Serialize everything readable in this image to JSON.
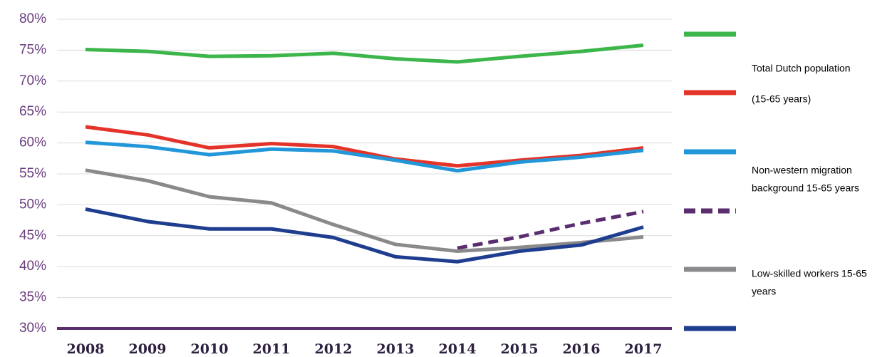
{
  "chart_data": {
    "type": "line",
    "categories": [
      "2008",
      "2009",
      "2010",
      "2011",
      "2012",
      "2013",
      "2014",
      "2015",
      "2016",
      "2017"
    ],
    "series": [
      {
        "color": "#3cb54a",
        "values": [
          75.1,
          74.8,
          74.0,
          74.1,
          74.5,
          73.6,
          73.1,
          74.0,
          74.8,
          75.8
        ]
      },
      {
        "color": "#e4342a",
        "values": [
          62.6,
          61.3,
          59.2,
          59.9,
          59.4,
          57.4,
          56.3,
          57.2,
          58.0,
          59.2
        ]
      },
      {
        "color": "#2196d8",
        "values": [
          60.1,
          59.4,
          58.1,
          59.0,
          58.7,
          57.2,
          55.5,
          56.9,
          57.7,
          58.8
        ]
      },
      {
        "color": "#5a2d6e",
        "dashed": true,
        "values": [
          null,
          null,
          null,
          null,
          null,
          null,
          43.0,
          44.8,
          47.0,
          48.9
        ]
      },
      {
        "color": "#8a8a8c",
        "values": [
          55.6,
          53.9,
          51.3,
          50.3,
          46.8,
          43.6,
          42.5,
          43.1,
          43.9,
          44.8
        ]
      },
      {
        "color": "#1e3d8f",
        "values": [
          49.3,
          47.3,
          46.1,
          46.1,
          44.7,
          41.6,
          40.8,
          42.5,
          43.5,
          46.4
        ]
      }
    ],
    "legend_texts": [
      "Total Dutch population",
      "(15-65 years)",
      "Non-western migration",
      "background 15-65 years",
      "Low-skilled workers 15-65",
      "years"
    ],
    "ylim": [
      30,
      80
    ],
    "yticks": [
      {
        "value": 30,
        "label": "30%"
      },
      {
        "value": 35,
        "label": "35%"
      },
      {
        "value": 40,
        "label": "40%"
      },
      {
        "value": 45,
        "label": "45%"
      },
      {
        "value": 50,
        "label": "50%"
      },
      {
        "value": 55,
        "label": "55%"
      },
      {
        "value": 60,
        "label": "60%"
      },
      {
        "value": 65,
        "label": "65%"
      },
      {
        "value": 70,
        "label": "70%"
      },
      {
        "value": 75,
        "label": "75%"
      },
      {
        "value": 80,
        "label": "80%"
      }
    ],
    "grid": true,
    "axis_color": "#5a2d6e"
  }
}
